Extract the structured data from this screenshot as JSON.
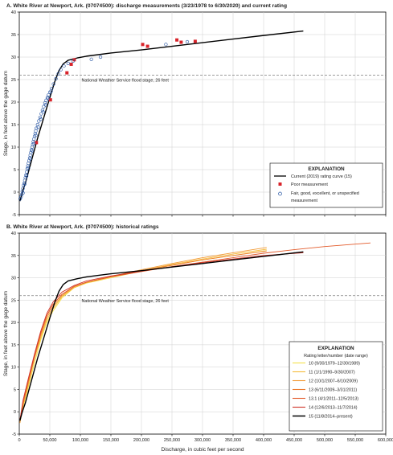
{
  "chart_data": [
    {
      "type": "scatter",
      "title": "A. White River at Newport, Ark. (07074500): discharge measurements (3/23/1978 to 6/30/2020) and current rating",
      "ylabel": "Stage, in feet above the gage datum",
      "xlim": [
        0,
        600000
      ],
      "ylim": [
        -5,
        40
      ],
      "yticks": [
        "-5",
        "0",
        "5",
        "10",
        "15",
        "20",
        "25",
        "30",
        "35",
        "40"
      ],
      "flood_stage": {
        "y": 26,
        "label": "National Weather Service flood stage, 26 feet"
      },
      "legend": {
        "title": "EXPLANATION",
        "placement": "lower-right",
        "entries": [
          "Current (2019) rating curve (15)",
          "Poor measurement",
          "Fair, good, excellent, or unspecified",
          "measurement"
        ]
      },
      "series": [
        {
          "name": "Current (2019) rating curve (15)",
          "kind": "line",
          "color": "#000000",
          "points": [
            [
              1000,
              -2
            ],
            [
              5000,
              0
            ],
            [
              10000,
              2
            ],
            [
              20000,
              7
            ],
            [
              30000,
              12
            ],
            [
              40000,
              16.5
            ],
            [
              50000,
              21
            ],
            [
              58000,
              24.5
            ],
            [
              65000,
              27
            ],
            [
              72000,
              28.5
            ],
            [
              80000,
              29.3
            ],
            [
              95000,
              29.8
            ],
            [
              110000,
              30.2
            ],
            [
              150000,
              30.9
            ],
            [
              200000,
              31.6
            ],
            [
              250000,
              32.4
            ],
            [
              300000,
              33.2
            ],
            [
              350000,
              34
            ],
            [
              400000,
              34.8
            ],
            [
              465000,
              35.8
            ]
          ]
        },
        {
          "name": "Poor measurement",
          "kind": "marker",
          "color": "#d8232a",
          "points": [
            [
              85000,
              28.4
            ],
            [
              90000,
              29.4
            ],
            [
              202000,
              32.8
            ],
            [
              210000,
              32.4
            ],
            [
              258000,
              33.8
            ],
            [
              265000,
              33.3
            ],
            [
              288000,
              33.5
            ],
            [
              78000,
              26.5
            ],
            [
              28000,
              11
            ],
            [
              51000,
              20.5
            ]
          ]
        },
        {
          "name": "Fair, good, excellent, or unspecified measurement",
          "kind": "marker",
          "color": "#1f4fa0",
          "points": [
            [
              1500,
              -1.5
            ],
            [
              3000,
              -1
            ],
            [
              4000,
              -0.5
            ],
            [
              5000,
              0.2
            ],
            [
              6000,
              0.8
            ],
            [
              7000,
              1.5
            ],
            [
              8000,
              2
            ],
            [
              9000,
              2.6
            ],
            [
              10000,
              3.2
            ],
            [
              11000,
              3.8
            ],
            [
              12000,
              4.5
            ],
            [
              13000,
              5.2
            ],
            [
              14000,
              5.8
            ],
            [
              15000,
              6.4
            ],
            [
              16000,
              7
            ],
            [
              17000,
              7.6
            ],
            [
              18000,
              8.2
            ],
            [
              19000,
              8.8
            ],
            [
              20000,
              9.4
            ],
            [
              21000,
              10
            ],
            [
              22000,
              10.6
            ],
            [
              23000,
              11.2
            ],
            [
              24000,
              11.8
            ],
            [
              25000,
              12.4
            ],
            [
              26000,
              13
            ],
            [
              27000,
              13.6
            ],
            [
              28000,
              14.2
            ],
            [
              30000,
              15
            ],
            [
              32000,
              15.8
            ],
            [
              34000,
              16.6
            ],
            [
              36000,
              17.4
            ],
            [
              38000,
              18.2
            ],
            [
              40000,
              19
            ],
            [
              42000,
              19.8
            ],
            [
              44000,
              20.4
            ],
            [
              46000,
              21
            ],
            [
              48000,
              21.6
            ],
            [
              50000,
              22.2
            ],
            [
              53000,
              23
            ],
            [
              56000,
              24
            ],
            [
              60000,
              25.2
            ],
            [
              64000,
              26.3
            ],
            [
              68000,
              27.2
            ],
            [
              73000,
              28
            ],
            [
              80000,
              28.6
            ],
            [
              88000,
              29.1
            ],
            [
              118000,
              29.5
            ],
            [
              133000,
              30
            ],
            [
              240000,
              32.8
            ],
            [
              275000,
              33.4
            ],
            [
              6000,
              -0.2
            ],
            [
              9000,
              1.8
            ],
            [
              12000,
              3.6
            ],
            [
              15000,
              5.4
            ],
            [
              18000,
              7.4
            ],
            [
              21000,
              9.2
            ],
            [
              24000,
              10.8
            ],
            [
              27000,
              12.6
            ],
            [
              31000,
              14.4
            ],
            [
              35000,
              16.2
            ],
            [
              39000,
              17.8
            ],
            [
              43000,
              19.4
            ],
            [
              47000,
              20.8
            ],
            [
              52000,
              22.4
            ]
          ]
        }
      ]
    },
    {
      "type": "line",
      "title": "B. White River at Newport, Ark. (07074500): historical ratings",
      "xlabel": "Discharge, in cubic feet per second",
      "ylabel": "Stage, in feet above the gage datum",
      "xlim": [
        0,
        600000
      ],
      "ylim": [
        -5,
        40
      ],
      "xticks": [
        "0",
        "50,000",
        "100,000",
        "150,000",
        "200,000",
        "250,000",
        "300,000",
        "350,000",
        "400,000",
        "450,000",
        "500,000",
        "550,000",
        "600,000"
      ],
      "yticks": [
        "-5",
        "0",
        "5",
        "10",
        "15",
        "20",
        "25",
        "30",
        "35",
        "40"
      ],
      "flood_stage": {
        "y": 26,
        "label": "National Weather Service flood stage, 26 feet"
      },
      "legend": {
        "title": "EXPLANATION",
        "subtitle": "Rating letter/number (date range)",
        "placement": "lower-right"
      },
      "series": [
        {
          "name": "10 (9/30/1979–12/30/1989)",
          "color": "#f5e04a",
          "points": [
            [
              1000,
              -2
            ],
            [
              6000,
              1
            ],
            [
              14000,
              5
            ],
            [
              25000,
              11
            ],
            [
              35000,
              16
            ],
            [
              45000,
              20
            ],
            [
              55000,
              22.5
            ],
            [
              70000,
              25.5
            ],
            [
              90000,
              27.8
            ],
            [
              110000,
              28.8
            ],
            [
              150000,
              30
            ],
            [
              200000,
              31.5
            ],
            [
              250000,
              32.8
            ],
            [
              300000,
              34
            ],
            [
              350000,
              35
            ],
            [
              405000,
              36.1
            ]
          ]
        },
        {
          "name": "11 (1/1/1990–9/30/2007)",
          "color": "#f6bb3b",
          "points": [
            [
              1000,
              -2.5
            ],
            [
              6000,
              1
            ],
            [
              14000,
              5.5
            ],
            [
              25000,
              12
            ],
            [
              35000,
              16.5
            ],
            [
              45000,
              20.5
            ],
            [
              55000,
              23
            ],
            [
              70000,
              25.8
            ],
            [
              90000,
              27.8
            ],
            [
              110000,
              28.9
            ],
            [
              150000,
              30.2
            ],
            [
              200000,
              31.6
            ],
            [
              250000,
              33
            ],
            [
              300000,
              34.2
            ],
            [
              350000,
              35.3
            ],
            [
              405000,
              36.4
            ]
          ]
        },
        {
          "name": "12 (10/1/2007–6/10/2009)",
          "color": "#f29a35",
          "points": [
            [
              1000,
              -2.5
            ],
            [
              6000,
              1.5
            ],
            [
              14000,
              6
            ],
            [
              25000,
              12
            ],
            [
              35000,
              17
            ],
            [
              45000,
              21
            ],
            [
              55000,
              23.5
            ],
            [
              70000,
              26
            ],
            [
              90000,
              28
            ],
            [
              110000,
              29
            ],
            [
              150000,
              30.3
            ],
            [
              200000,
              31.8
            ],
            [
              250000,
              33.2
            ],
            [
              300000,
              34.5
            ],
            [
              350000,
              35.6
            ],
            [
              405000,
              36.8
            ]
          ]
        },
        {
          "name": "13 (6/11/2009–3/31/2011)",
          "color": "#ec7a2d",
          "points": [
            [
              1000,
              -2
            ],
            [
              6000,
              2
            ],
            [
              14000,
              6.5
            ],
            [
              25000,
              12.5
            ],
            [
              35000,
              17.5
            ],
            [
              45000,
              21.5
            ],
            [
              55000,
              24
            ],
            [
              70000,
              26.3
            ],
            [
              90000,
              28.1
            ],
            [
              110000,
              29
            ],
            [
              150000,
              30.3
            ],
            [
              200000,
              31.6
            ],
            [
              250000,
              32.8
            ],
            [
              300000,
              34
            ],
            [
              350000,
              35
            ],
            [
              405000,
              36
            ]
          ]
        },
        {
          "name": "13.1 (4/1/2011–12/5/2013)",
          "color": "#e35a2a",
          "points": [
            [
              1000,
              -2
            ],
            [
              6000,
              2
            ],
            [
              14000,
              6.5
            ],
            [
              25000,
              12.5
            ],
            [
              35000,
              17.5
            ],
            [
              45000,
              21.5
            ],
            [
              55000,
              24
            ],
            [
              70000,
              26.3
            ],
            [
              90000,
              28.1
            ],
            [
              110000,
              29
            ],
            [
              150000,
              30.2
            ],
            [
              200000,
              31.4
            ],
            [
              250000,
              32.5
            ],
            [
              300000,
              33.5
            ],
            [
              350000,
              34.5
            ],
            [
              400000,
              35.5
            ],
            [
              450000,
              36.3
            ],
            [
              500000,
              37
            ],
            [
              575000,
              37.8
            ]
          ]
        },
        {
          "name": "14 (12/6/2013–11/7/2014)",
          "color": "#cf3328",
          "points": [
            [
              1000,
              -2
            ],
            [
              6000,
              2.5
            ],
            [
              14000,
              7
            ],
            [
              25000,
              13
            ],
            [
              35000,
              18
            ],
            [
              45000,
              22
            ],
            [
              55000,
              24.5
            ],
            [
              70000,
              26.8
            ],
            [
              90000,
              28.3
            ],
            [
              110000,
              29.3
            ],
            [
              150000,
              30.4
            ],
            [
              200000,
              31.5
            ],
            [
              250000,
              32.5
            ],
            [
              300000,
              33.4
            ],
            [
              350000,
              34.2
            ],
            [
              400000,
              35
            ],
            [
              465000,
              35.6
            ]
          ]
        },
        {
          "name": "15 (11/8/2014–present)",
          "color": "#000000",
          "points": [
            [
              1000,
              -2
            ],
            [
              5000,
              0
            ],
            [
              10000,
              2
            ],
            [
              20000,
              7
            ],
            [
              30000,
              12
            ],
            [
              40000,
              16.5
            ],
            [
              50000,
              21
            ],
            [
              58000,
              24.5
            ],
            [
              65000,
              27
            ],
            [
              72000,
              28.5
            ],
            [
              80000,
              29.3
            ],
            [
              95000,
              29.8
            ],
            [
              110000,
              30.2
            ],
            [
              150000,
              30.9
            ],
            [
              200000,
              31.6
            ],
            [
              250000,
              32.4
            ],
            [
              300000,
              33.2
            ],
            [
              350000,
              34
            ],
            [
              400000,
              34.8
            ],
            [
              465000,
              35.8
            ]
          ]
        }
      ]
    }
  ]
}
